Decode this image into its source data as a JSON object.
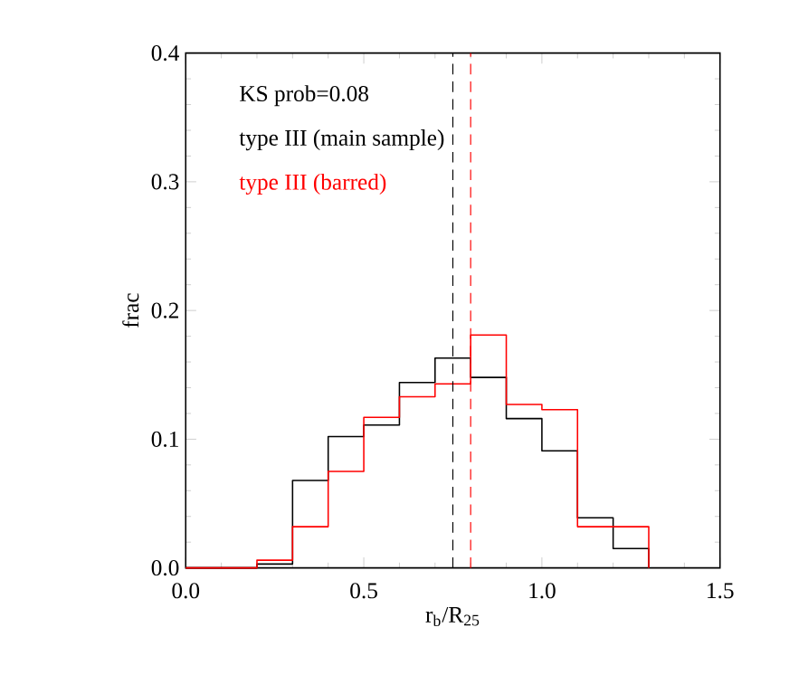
{
  "chart_data": {
    "type": "histogram",
    "xlabel": "r$_{b}$/R$_{25}$",
    "ylabel": "frac",
    "bins": [
      0.0,
      0.1,
      0.2,
      0.3,
      0.4,
      0.5,
      0.6,
      0.7,
      0.8,
      0.9,
      1.0,
      1.1,
      1.2,
      1.3
    ],
    "series": [
      {
        "name": "type III (main sample)",
        "color": "#000000",
        "values": [
          0,
          0,
          0.003,
          0.068,
          0.102,
          0.111,
          0.144,
          0.163,
          0.148,
          0.116,
          0.091,
          0.039,
          0.015
        ]
      },
      {
        "name": "type III (barred)",
        "color": "#ff0000",
        "values": [
          0,
          0,
          0.006,
          0.032,
          0.075,
          0.117,
          0.133,
          0.143,
          0.181,
          0.127,
          0.123,
          0.032,
          0.032
        ]
      }
    ],
    "xlim": [
      0.0,
      1.5
    ],
    "ylim": [
      0.0,
      0.4
    ],
    "xticks": [
      {
        "value": 0.0,
        "label": "0.0"
      },
      {
        "value": 0.5,
        "label": "0.5"
      },
      {
        "value": 1.0,
        "label": "1.0"
      },
      {
        "value": 1.5,
        "label": "1.5"
      }
    ],
    "yticks": [
      {
        "value": 0.0,
        "label": "0.0"
      },
      {
        "value": 0.1,
        "label": "0.1"
      },
      {
        "value": 0.2,
        "label": "0.2"
      },
      {
        "value": 0.3,
        "label": "0.3"
      },
      {
        "value": 0.4,
        "label": "0.4"
      }
    ],
    "ref_lines": [
      {
        "axis": "x",
        "value": 0.75,
        "color": "#000000",
        "line_style": "dashed"
      },
      {
        "axis": "x",
        "value": 0.8,
        "color": "#ff0000",
        "line_style": "dashed"
      }
    ],
    "annotations": [
      "KS prob=0.08"
    ],
    "legend": "top left",
    "grid": false
  }
}
